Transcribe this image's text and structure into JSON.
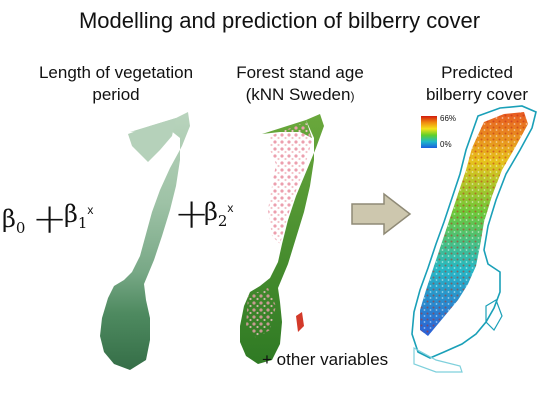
{
  "title": "Modelling and prediction of bilberry cover",
  "panels": {
    "vegetation": {
      "label_line1": "Length of vegetation",
      "label_line2": "period"
    },
    "forest": {
      "label_line1": "Forest stand age",
      "label_line2": "(kNN Sweden",
      "label_suffix": ")"
    },
    "prediction": {
      "label_line1": "Predicted",
      "label_line2": "bilberry cover"
    }
  },
  "formula": {
    "b0": "β",
    "b0_sub": "0",
    "b1": "β",
    "b1_sub": "1",
    "b1_var": "x",
    "b2": "β",
    "b2_sub": "2",
    "b2_var": "x",
    "plus": "+"
  },
  "legend": {
    "max_label": "66%",
    "min_label": "0%"
  },
  "footer": {
    "other_variables": "+ other variables"
  },
  "colors": {
    "veg_light": "#a9c8b0",
    "veg_dark": "#3f7a52",
    "forest_green": "#3f8a2a",
    "forest_pink": "#e8a0a8",
    "arrow_fill": "#cdc7ae",
    "arrow_stroke": "#8f8a76",
    "outline": "#1aa0b8"
  }
}
